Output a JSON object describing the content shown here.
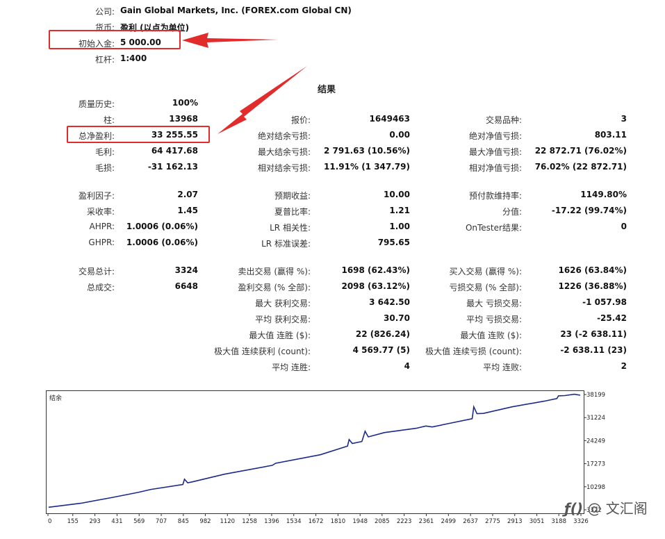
{
  "header": {
    "company_label": "公司:",
    "company_value": "Gain Global Markets, Inc. (FOREX.com Global CN)",
    "currency_label": "货币:",
    "currency_value": "盈利 (以点为单位)",
    "deposit_label": "初始入金:",
    "deposit_value": "5 000.00",
    "leverage_label": "杠杆:",
    "leverage_value": "1:400"
  },
  "results_title": "结果",
  "col1": [
    {
      "label": "质量历史:",
      "value": "100%"
    },
    {
      "label": "柱:",
      "value": "13968"
    },
    {
      "label": "总净盈利:",
      "value": "33 255.55"
    },
    {
      "label": "毛利:",
      "value": "64 417.68"
    },
    {
      "label": "毛损:",
      "value": "-31 162.13"
    },
    {
      "label": "盈利因子:",
      "value": "2.07"
    },
    {
      "label": "采收率:",
      "value": "1.45"
    },
    {
      "label": "AHPR:",
      "value": "1.0006 (0.06%)"
    },
    {
      "label": "GHPR:",
      "value": "1.0006 (0.06%)"
    },
    {
      "label": "交易总计:",
      "value": "3324"
    },
    {
      "label": "总成交:",
      "value": "6648"
    }
  ],
  "col2": [
    {
      "label": "报价:",
      "value": "1649463"
    },
    {
      "label": "绝对结余亏损:",
      "value": "0.00"
    },
    {
      "label": "最大结余亏损:",
      "value": "2 791.63 (10.56%)"
    },
    {
      "label": "相对结余亏损:",
      "value": "11.91% (1 347.79)"
    },
    {
      "label": "预期收益:",
      "value": "10.00"
    },
    {
      "label": "夏普比率:",
      "value": "1.21"
    },
    {
      "label": "LR 相关性:",
      "value": "1.00"
    },
    {
      "label": "LR 标准误差:",
      "value": "795.65"
    },
    {
      "label": "卖出交易 (赢得 %):",
      "value": "1698 (62.43%)"
    },
    {
      "label": "盈利交易 (% 全部):",
      "value": "2098 (63.12%)"
    },
    {
      "label": "最大 获利交易:",
      "value": "3 642.50"
    },
    {
      "label": "平均 获利交易:",
      "value": "30.70"
    },
    {
      "label": "最大值 连胜 ($):",
      "value": "22 (826.24)"
    },
    {
      "label": "极大值 连续获利 (count):",
      "value": "4 569.77 (5)"
    },
    {
      "label": "平均 连胜:",
      "value": "4"
    }
  ],
  "col3": [
    {
      "label": "交易品种:",
      "value": "3"
    },
    {
      "label": "绝对净值亏损:",
      "value": "803.11"
    },
    {
      "label": "最大净值亏损:",
      "value": "22 872.71 (76.02%)"
    },
    {
      "label": "相对净值亏损:",
      "value": "76.02% (22 872.71)"
    },
    {
      "label": "预付款维持率:",
      "value": "1149.80%"
    },
    {
      "label": "分值:",
      "value": "-17.22 (99.74%)"
    },
    {
      "label": "OnTester结果:",
      "value": "0"
    },
    {
      "label": "买入交易 (赢得 %):",
      "value": "1626 (63.84%)"
    },
    {
      "label": "亏损交易 (% 全部):",
      "value": "1226 (36.88%)"
    },
    {
      "label": "最大 亏损交易:",
      "value": "-1 057.98"
    },
    {
      "label": "平均 亏损交易:",
      "value": "-25.42"
    },
    {
      "label": "最大值 连败 ($):",
      "value": "23 (-2 638.11)"
    },
    {
      "label": "极大值 连续亏损 (count):",
      "value": "-2 638.11 (23)"
    },
    {
      "label": "平均 连败:",
      "value": "2"
    }
  ],
  "chart_data": {
    "type": "line",
    "title": "结余",
    "x_ticks": [
      "0",
      "155",
      "293",
      "431",
      "569",
      "707",
      "845",
      "982",
      "1120",
      "1258",
      "1396",
      "1534",
      "1672",
      "1810",
      "1948",
      "2085",
      "2223",
      "2361",
      "2499",
      "2637",
      "2775",
      "2913",
      "3051",
      "3188",
      "3326"
    ],
    "y_ticks": [
      "38199",
      "31224",
      "24249",
      "17273",
      "10298",
      "3322"
    ],
    "xlim": [
      0,
      3326
    ],
    "ylim": [
      3322,
      38199
    ],
    "series": [
      {
        "color": "#1a2a8a",
        "x": [
          0,
          200,
          400,
          560,
          640,
          840,
          850,
          870,
          900,
          1100,
          1400,
          1420,
          1700,
          1870,
          1880,
          1900,
          1960,
          1980,
          2000,
          2100,
          2300,
          2360,
          2400,
          2500,
          2650,
          2660,
          2680,
          2720,
          2900,
          3100,
          3180,
          3190,
          3230,
          3290,
          3326
        ],
        "y": [
          4300,
          5500,
          7300,
          8800,
          9700,
          11200,
          12800,
          11700,
          12000,
          14300,
          17000,
          17600,
          20200,
          22800,
          24800,
          23600,
          24200,
          27300,
          25600,
          26900,
          28200,
          28900,
          28600,
          29600,
          31100,
          34700,
          32600,
          32700,
          34700,
          36400,
          37200,
          38000,
          38100,
          38500,
          38200
        ]
      }
    ],
    "color": "#1a2a8a",
    "grid": false
  },
  "watermark": "文汇阁"
}
